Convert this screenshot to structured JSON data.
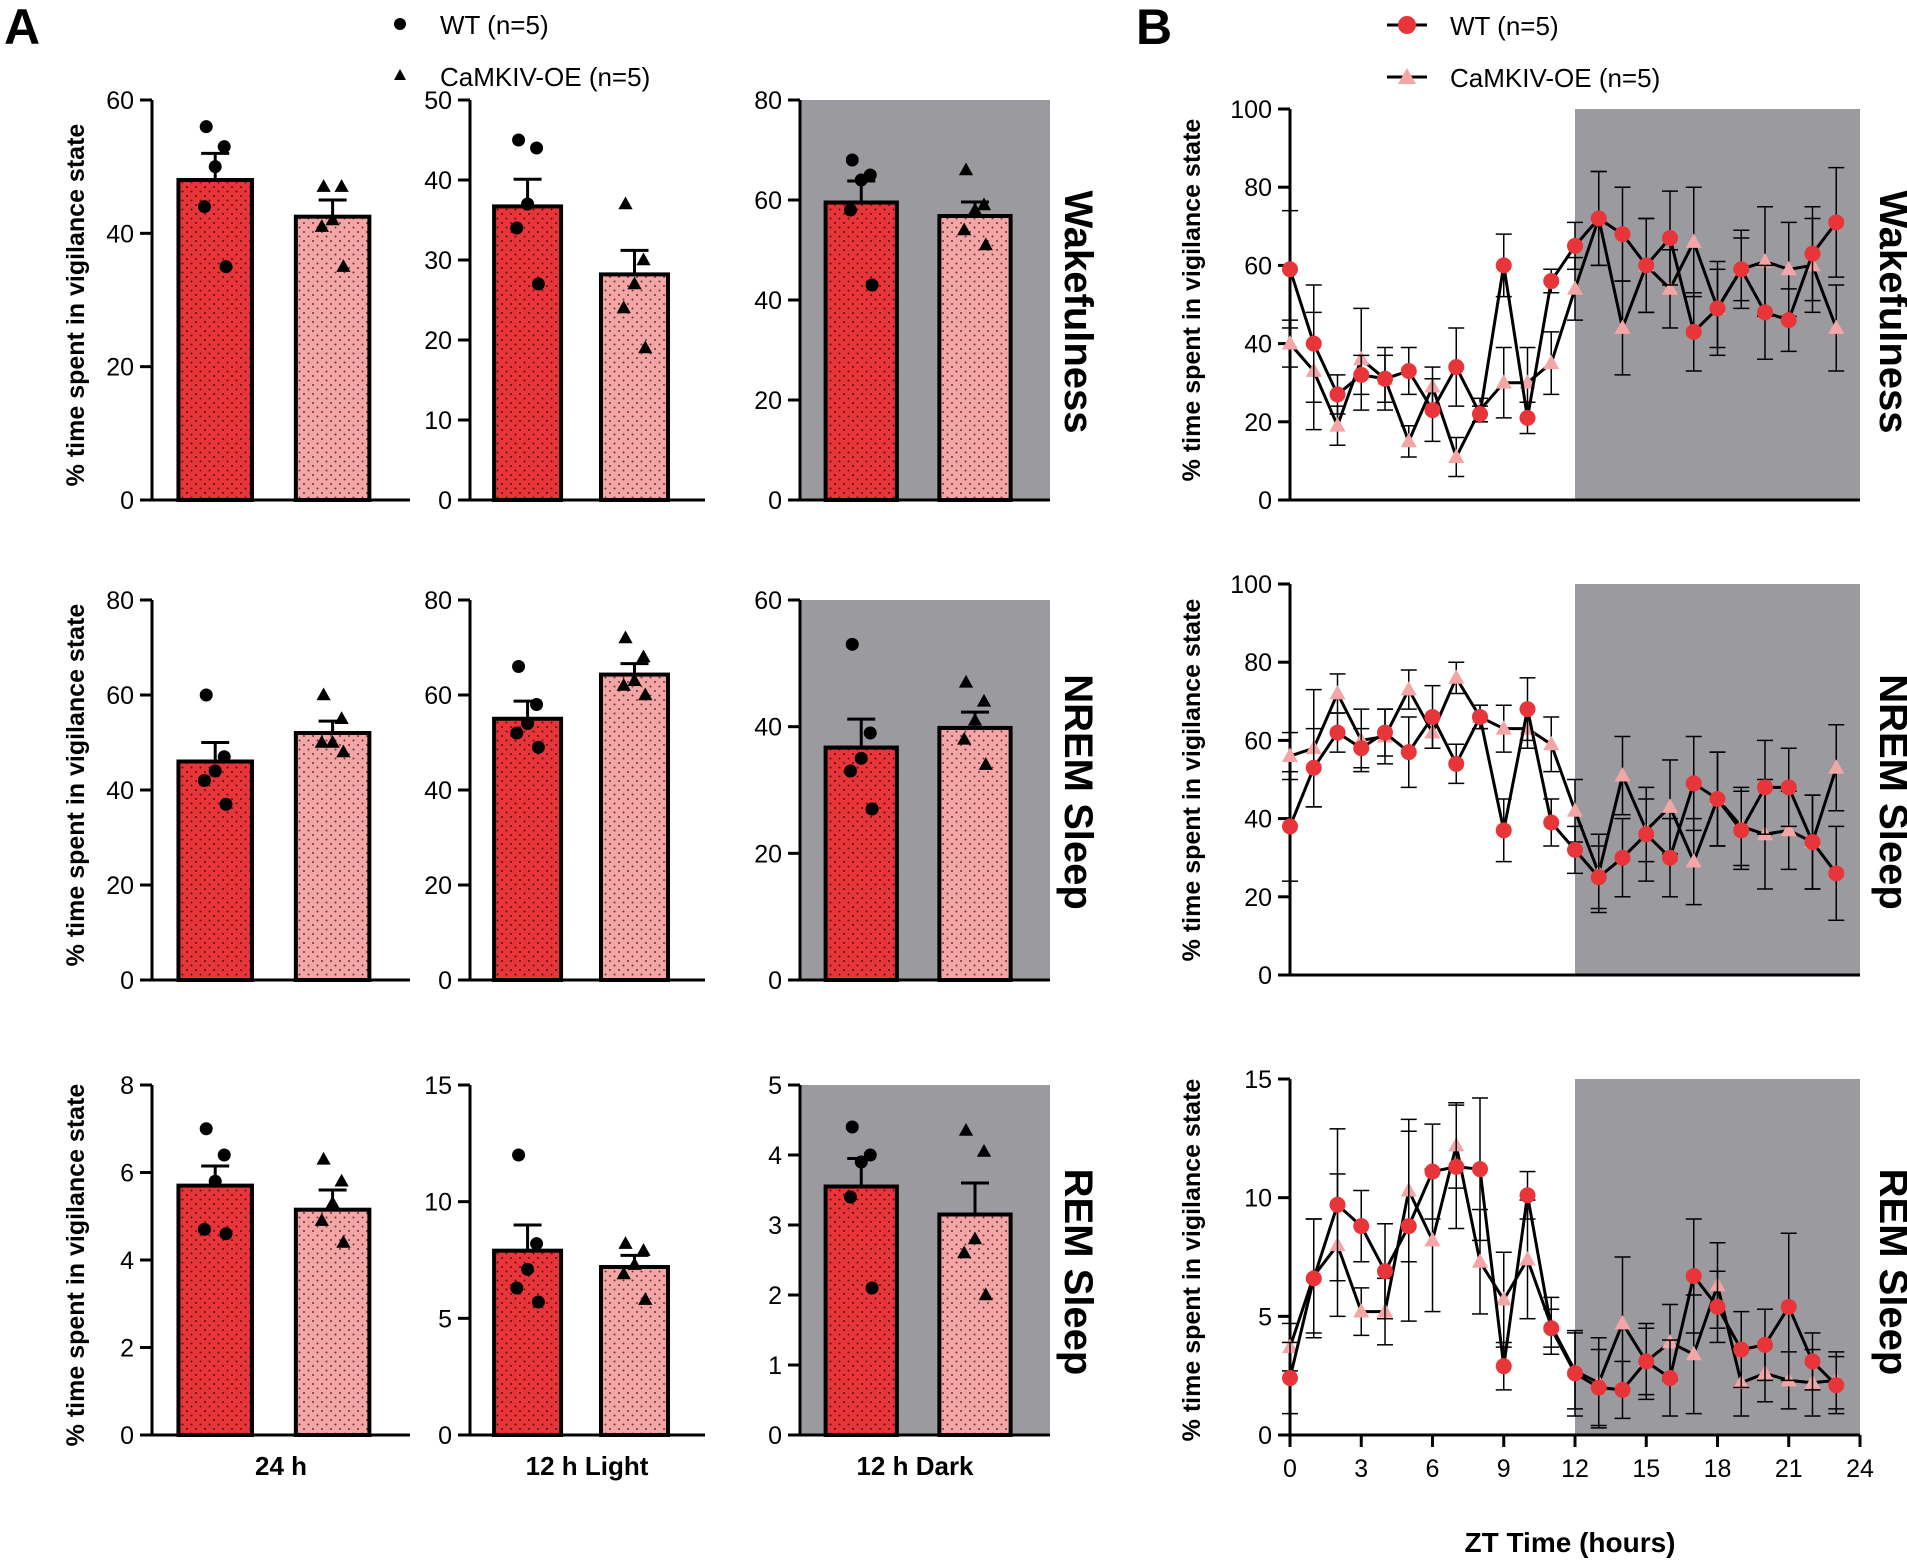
{
  "colors": {
    "wt": "#e8353a",
    "oe": "#f4a5a5",
    "dark_period": "#9b9a9f",
    "axis": "#000000"
  },
  "panel_a": {
    "letter": "A",
    "legend": [
      {
        "marker": "circle",
        "label": "WT (n=5)"
      },
      {
        "marker": "triangle",
        "label": "CaMKIV-OE (n=5)"
      }
    ],
    "ylabel": "% time spent in vigilance state",
    "column_labels": [
      "24 h",
      "12 h Light",
      "12 h Dark"
    ]
  },
  "panel_b": {
    "letter": "B",
    "legend": [
      {
        "marker": "circle",
        "label": "WT (n=5)"
      },
      {
        "marker": "triangle",
        "label": "CaMKIV-OE (n=5)"
      }
    ],
    "ylabel": "% time spent in vigilance state",
    "xlabel": "ZT Time (hours)"
  },
  "row_labels": [
    "Wakefulness",
    "NREM Sleep",
    "REM Sleep"
  ],
  "chart_data": [
    {
      "type": "bar",
      "panel": "A",
      "row": "Wakefulness",
      "column": "24 h",
      "ylim": [
        0,
        60
      ],
      "yticks": [
        0,
        20,
        40,
        60
      ],
      "dark_shading": false,
      "series": [
        {
          "name": "WT (n=5)",
          "mean": 48,
          "sem": 4,
          "points": [
            56,
            53,
            50,
            44,
            35
          ]
        },
        {
          "name": "CaMKIV-OE (n=5)",
          "mean": 42.5,
          "sem": 2.5,
          "points": [
            47,
            47,
            42,
            41,
            35
          ]
        }
      ]
    },
    {
      "type": "bar",
      "panel": "A",
      "row": "Wakefulness",
      "column": "12 h Light",
      "ylim": [
        0,
        50
      ],
      "yticks": [
        0,
        10,
        20,
        30,
        40,
        50
      ],
      "dark_shading": false,
      "series": [
        {
          "name": "WT (n=5)",
          "mean": 36.7,
          "sem": 3.4,
          "points": [
            45,
            44,
            37,
            34,
            27
          ]
        },
        {
          "name": "CaMKIV-OE (n=5)",
          "mean": 28.2,
          "sem": 3,
          "points": [
            37,
            30,
            27,
            24,
            19
          ]
        }
      ]
    },
    {
      "type": "bar",
      "panel": "A",
      "row": "Wakefulness",
      "column": "12 h Dark",
      "ylim": [
        0,
        80
      ],
      "yticks": [
        0,
        20,
        40,
        60,
        80
      ],
      "dark_shading": true,
      "series": [
        {
          "name": "WT (n=5)",
          "mean": 59.5,
          "sem": 4.3,
          "points": [
            68,
            65,
            64,
            58,
            43
          ]
        },
        {
          "name": "CaMKIV-OE (n=5)",
          "mean": 56.8,
          "sem": 2.8,
          "points": [
            66,
            59,
            58,
            54,
            51
          ]
        }
      ]
    },
    {
      "type": "bar",
      "panel": "A",
      "row": "NREM Sleep",
      "column": "24 h",
      "ylim": [
        0,
        80
      ],
      "yticks": [
        0,
        20,
        40,
        60,
        80
      ],
      "dark_shading": false,
      "series": [
        {
          "name": "WT (n=5)",
          "mean": 46,
          "sem": 4,
          "points": [
            60,
            47,
            44,
            42,
            37
          ]
        },
        {
          "name": "CaMKIV-OE (n=5)",
          "mean": 52,
          "sem": 2.5,
          "points": [
            60,
            55,
            50,
            50,
            48
          ]
        }
      ]
    },
    {
      "type": "bar",
      "panel": "A",
      "row": "NREM Sleep",
      "column": "12 h Light",
      "ylim": [
        0,
        80
      ],
      "yticks": [
        0,
        20,
        40,
        60,
        80
      ],
      "dark_shading": false,
      "series": [
        {
          "name": "WT (n=5)",
          "mean": 55,
          "sem": 3.7,
          "points": [
            66,
            58,
            54,
            52,
            49
          ]
        },
        {
          "name": "CaMKIV-OE (n=5)",
          "mean": 64.3,
          "sem": 2.3,
          "points": [
            72,
            68,
            63,
            62,
            60
          ]
        }
      ]
    },
    {
      "type": "bar",
      "panel": "A",
      "row": "NREM Sleep",
      "column": "12 h Dark",
      "ylim": [
        0,
        60
      ],
      "yticks": [
        0,
        20,
        40,
        60
      ],
      "dark_shading": true,
      "series": [
        {
          "name": "WT (n=5)",
          "mean": 36.7,
          "sem": 4.5,
          "points": [
            53,
            39,
            35,
            33,
            27
          ]
        },
        {
          "name": "CaMKIV-OE (n=5)",
          "mean": 39.8,
          "sem": 2.5,
          "points": [
            47,
            44,
            41,
            38,
            34
          ]
        }
      ]
    },
    {
      "type": "bar",
      "panel": "A",
      "row": "REM Sleep",
      "column": "24 h",
      "ylim": [
        0,
        8
      ],
      "yticks": [
        0,
        2,
        4,
        6,
        8
      ],
      "dark_shading": false,
      "series": [
        {
          "name": "WT (n=5)",
          "mean": 5.7,
          "sem": 0.45,
          "points": [
            7,
            6.4,
            5.8,
            4.7,
            4.6
          ]
        },
        {
          "name": "CaMKIV-OE (n=5)",
          "mean": 5.15,
          "sem": 0.45,
          "points": [
            6.3,
            5.8,
            5.3,
            4.9,
            4.4
          ]
        }
      ]
    },
    {
      "type": "bar",
      "panel": "A",
      "row": "REM Sleep",
      "column": "12 h Light",
      "ylim": [
        0,
        15
      ],
      "yticks": [
        0,
        5,
        10,
        15
      ],
      "dark_shading": false,
      "series": [
        {
          "name": "WT (n=5)",
          "mean": 7.9,
          "sem": 1.1,
          "points": [
            12,
            8.2,
            7.1,
            6.3,
            5.7
          ]
        },
        {
          "name": "CaMKIV-OE (n=5)",
          "mean": 7.2,
          "sem": 0.5,
          "points": [
            8.2,
            7.9,
            7.3,
            6.9,
            5.8
          ]
        }
      ]
    },
    {
      "type": "bar",
      "panel": "A",
      "row": "REM Sleep",
      "column": "12 h Dark",
      "ylim": [
        0,
        5
      ],
      "yticks": [
        0,
        1,
        2,
        3,
        4,
        5
      ],
      "dark_shading": true,
      "series": [
        {
          "name": "WT (n=5)",
          "mean": 3.55,
          "sem": 0.4,
          "points": [
            4.4,
            4,
            3.9,
            3.4,
            2.1
          ]
        },
        {
          "name": "CaMKIV-OE (n=5)",
          "mean": 3.15,
          "sem": 0.45,
          "points": [
            4.35,
            4.05,
            2.8,
            2.6,
            2
          ]
        }
      ]
    },
    {
      "type": "line",
      "panel": "B",
      "row": "Wakefulness",
      "xlabel": "ZT Time (hours)",
      "ylim": [
        0,
        100
      ],
      "yticks": [
        0,
        20,
        40,
        60,
        80,
        100
      ],
      "xlim": [
        0,
        24
      ],
      "xticks": [
        0,
        3,
        6,
        9,
        12,
        15,
        18,
        21,
        24
      ],
      "dark_start": 12,
      "x": [
        0,
        1,
        2,
        3,
        4,
        5,
        6,
        7,
        8,
        9,
        10,
        11,
        12,
        13,
        14,
        15,
        16,
        17,
        18,
        19,
        20,
        21,
        22,
        23
      ],
      "series": [
        {
          "name": "WT (n=5)",
          "values": [
            59,
            40,
            27,
            32,
            31,
            33,
            23,
            34,
            22,
            60,
            21,
            56,
            65,
            72,
            68,
            60,
            67,
            43,
            49,
            59,
            48,
            46,
            63,
            71
          ],
          "sem": [
            15,
            15,
            5,
            5,
            6,
            6,
            8,
            10,
            2,
            8,
            4,
            3,
            6,
            12,
            12,
            12,
            12,
            10,
            10,
            8,
            12,
            8,
            12,
            14
          ]
        },
        {
          "name": "CaMKIV-OE (n=5)",
          "values": [
            40,
            33,
            19,
            36,
            31,
            15,
            29,
            11,
            23,
            30,
            30,
            35,
            54,
            72,
            44,
            60,
            54,
            66,
            49,
            59,
            61,
            59,
            60,
            44
          ],
          "sem": [
            6,
            15,
            5,
            13,
            8,
            4,
            5,
            5,
            3,
            9,
            9,
            8,
            8,
            12,
            12,
            12,
            10,
            14,
            12,
            10,
            14,
            12,
            12,
            11
          ]
        }
      ]
    },
    {
      "type": "line",
      "panel": "B",
      "row": "NREM Sleep",
      "xlabel": "ZT Time (hours)",
      "ylim": [
        0,
        100
      ],
      "yticks": [
        0,
        20,
        40,
        60,
        80,
        100
      ],
      "xlim": [
        0,
        24
      ],
      "xticks": [
        0,
        3,
        6,
        9,
        12,
        15,
        18,
        21,
        24
      ],
      "dark_start": 12,
      "x": [
        0,
        1,
        2,
        3,
        4,
        5,
        6,
        7,
        8,
        9,
        10,
        11,
        12,
        13,
        14,
        15,
        16,
        17,
        18,
        19,
        20,
        21,
        22,
        23
      ],
      "series": [
        {
          "name": "WT (n=5)",
          "values": [
            38,
            53,
            62,
            58,
            62,
            57,
            66,
            54,
            66,
            37,
            68,
            39,
            32,
            25,
            30,
            36,
            30,
            49,
            45,
            37,
            48,
            48,
            34,
            26
          ],
          "sem": [
            14,
            10,
            5,
            5,
            6,
            9,
            8,
            5,
            3,
            8,
            8,
            6,
            6,
            8,
            10,
            12,
            10,
            12,
            12,
            10,
            12,
            10,
            12,
            12
          ]
        },
        {
          "name": "CaMKIV-OE (n=5)",
          "values": [
            56,
            58,
            72,
            60,
            61,
            73,
            62,
            76,
            66,
            63,
            63,
            59,
            42,
            26,
            51,
            37,
            43,
            29,
            45,
            38,
            36,
            37,
            34,
            53
          ],
          "sem": [
            6,
            15,
            5,
            8,
            7,
            5,
            4,
            4,
            3,
            6,
            5,
            7,
            8,
            10,
            10,
            8,
            12,
            11,
            12,
            10,
            14,
            10,
            12,
            11
          ]
        }
      ]
    },
    {
      "type": "line",
      "panel": "B",
      "row": "REM Sleep",
      "xlabel": "ZT Time (hours)",
      "ylim": [
        0,
        15
      ],
      "yticks": [
        0,
        5,
        10,
        15
      ],
      "xlim": [
        0,
        24
      ],
      "xticks": [
        0,
        3,
        6,
        9,
        12,
        15,
        18,
        21,
        24
      ],
      "dark_start": 12,
      "x": [
        0,
        1,
        2,
        3,
        4,
        5,
        6,
        7,
        8,
        9,
        10,
        11,
        12,
        13,
        14,
        15,
        16,
        17,
        18,
        19,
        20,
        21,
        22,
        23
      ],
      "series": [
        {
          "name": "WT (n=5)",
          "values": [
            2.4,
            6.6,
            9.7,
            8.8,
            6.9,
            8.8,
            11.1,
            11.3,
            11.2,
            2.9,
            10.1,
            4.5,
            2.6,
            2.0,
            1.9,
            3.1,
            2.4,
            6.7,
            5.4,
            3.6,
            3.8,
            5.4,
            3.1,
            2.1
          ],
          "sem": [
            1.5,
            2.5,
            3.2,
            1.5,
            2,
            4,
            2,
            2.6,
            3,
            1,
            1,
            0.8,
            1.8,
            1.6,
            1.2,
            1.6,
            1.6,
            2.4,
            1.5,
            1.6,
            1.5,
            3.1,
            1.2,
            1.2
          ]
        },
        {
          "name": "CaMKIV-OE (n=5)",
          "values": [
            3.7,
            6.7,
            8.0,
            5.2,
            5.2,
            10.3,
            8.2,
            12.2,
            7.3,
            5.7,
            7.4,
            4.6,
            2.7,
            2.2,
            4.7,
            3.1,
            3.9,
            3.4,
            6.3,
            2.2,
            2.6,
            2.3,
            2.2,
            2.3
          ],
          "sem": [
            1,
            2.4,
            3,
            1,
            1.4,
            3,
            3,
            1.8,
            2.2,
            2,
            2.5,
            1.2,
            1.6,
            1.9,
            2.8,
            1.4,
            1.6,
            2.5,
            1.8,
            1.4,
            1.2,
            1.2,
            1.4,
            1.2
          ]
        }
      ]
    }
  ]
}
